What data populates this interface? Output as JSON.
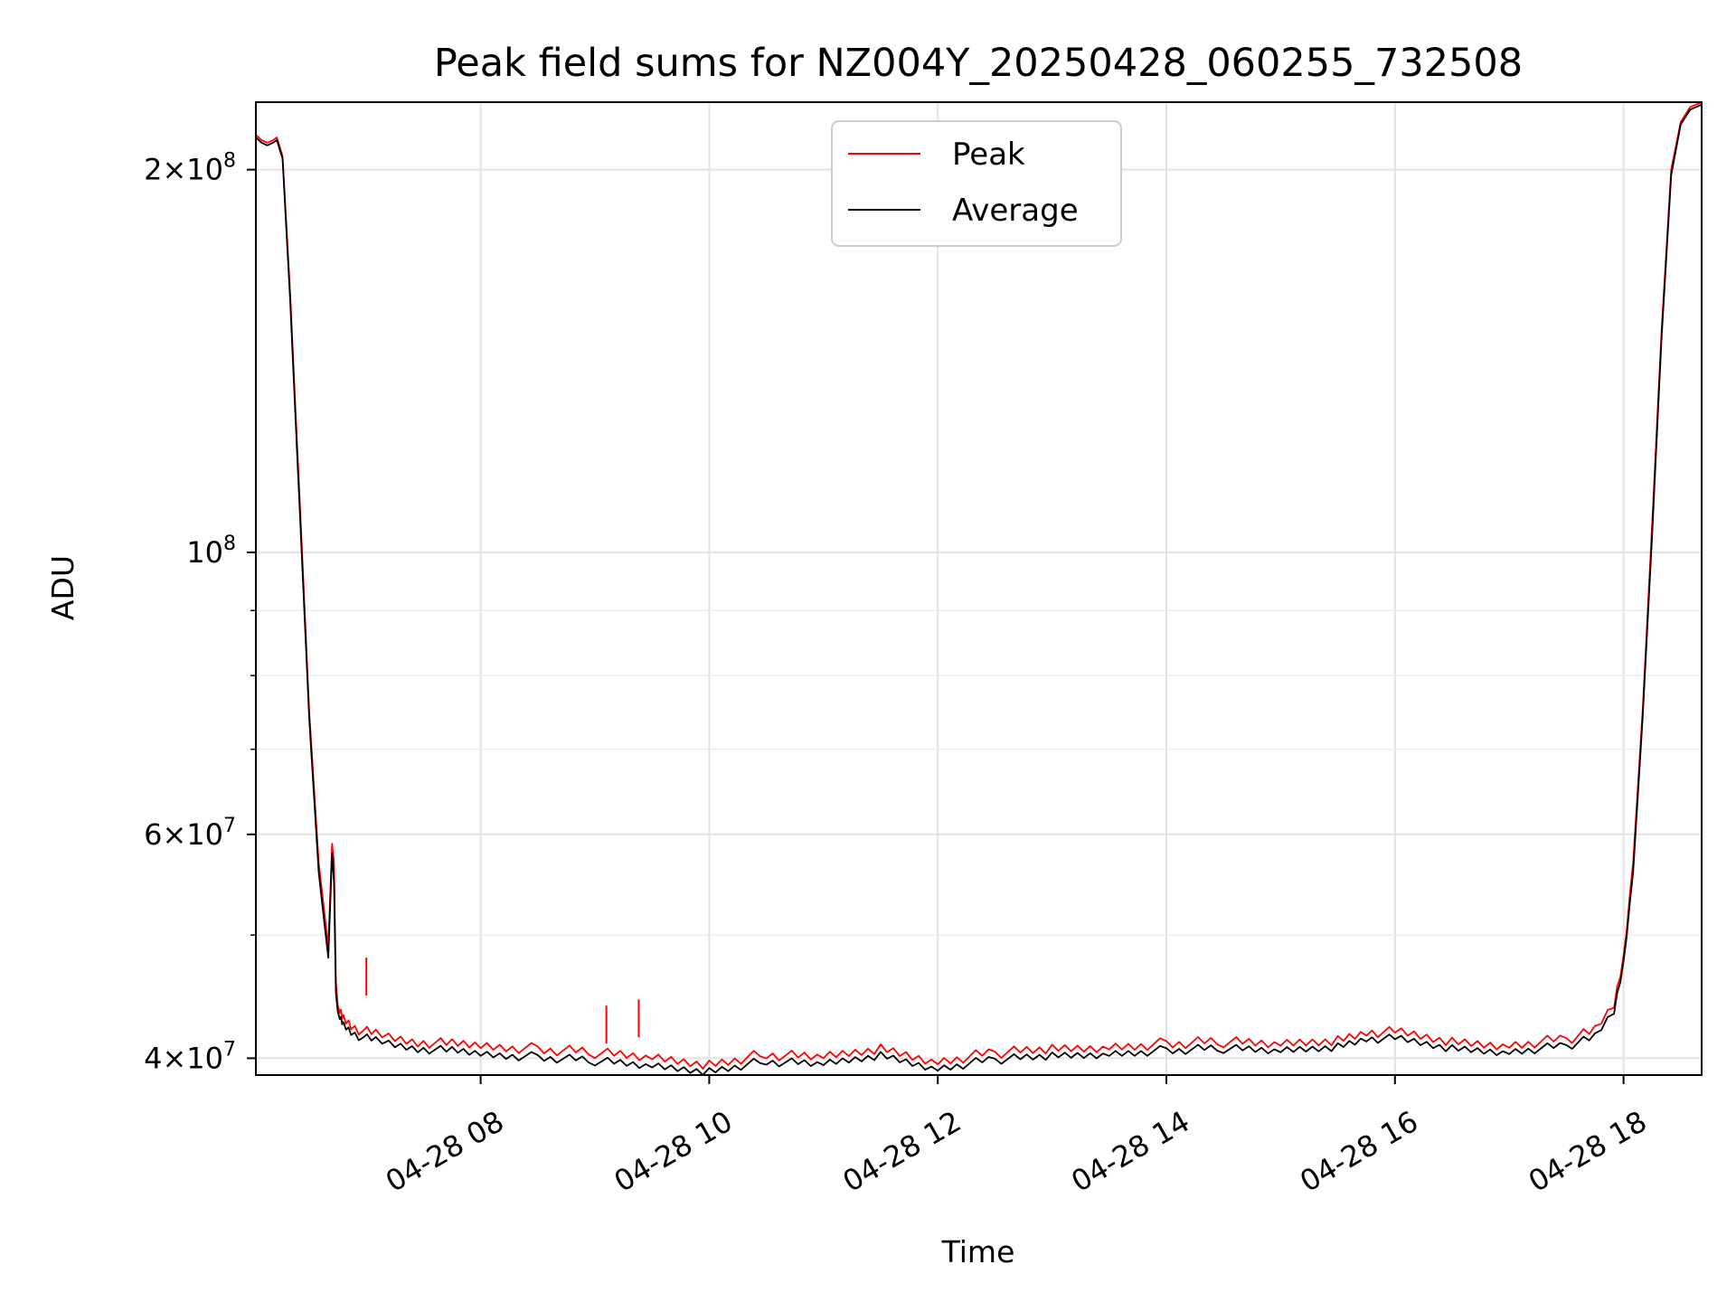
{
  "chart_data": {
    "type": "line",
    "title": "Peak field sums for NZ004Y_20250428_060255_732508",
    "xlabel": "Time",
    "ylabel": "ADU",
    "yscale": "log",
    "xlim": [
      "2025-04-28 06:02",
      "2025-04-28 18:41"
    ],
    "ylim": [
      38800000,
      226000000
    ],
    "grid": true,
    "legend": {
      "placement": "upper center",
      "entries": [
        "Peak",
        "Average"
      ]
    },
    "x_ticks": [
      "04-28 08",
      "04-28 10",
      "04-28 12",
      "04-28 14",
      "04-28 16",
      "04-28 18"
    ],
    "y_ticks": [
      {
        "mantissa": "4",
        "exponent": "7"
      },
      {
        "mantissa": "6",
        "exponent": "7"
      },
      {
        "mantissa": "",
        "exponent": "8"
      },
      {
        "mantissa": "2",
        "exponent": "8"
      }
    ],
    "series": [
      {
        "name": "Peak",
        "color": "#ff0000",
        "x": [
          "2025-04-28 06:02",
          "2025-04-28 06:05",
          "2025-04-28 06:08",
          "2025-04-28 06:11",
          "2025-04-28 06:13",
          "2025-04-28 06:16",
          "2025-04-28 06:20",
          "2025-04-28 06:25",
          "2025-04-28 06:30",
          "2025-04-28 06:35",
          "2025-04-28 06:40",
          "2025-04-28 06:42",
          "2025-04-28 06:43",
          "2025-04-28 06:44",
          "2025-04-28 06:45",
          "2025-04-28 06:46",
          "2025-04-28 06:48",
          "2025-04-28 06:52",
          "2025-04-28 06:58",
          "2025-04-28 07:05",
          "2025-04-28 07:15",
          "2025-04-28 07:30",
          "2025-04-28 07:45",
          "2025-04-28 08:00",
          "2025-04-28 08:30",
          "2025-04-28 09:00",
          "2025-04-28 09:30",
          "2025-04-28 10:00",
          "2025-04-28 10:30",
          "2025-04-28 11:00",
          "2025-04-28 11:30",
          "2025-04-28 12:00",
          "2025-04-28 12:30",
          "2025-04-28 13:00",
          "2025-04-28 13:30",
          "2025-04-28 14:00",
          "2025-04-28 14:30",
          "2025-04-28 15:00",
          "2025-04-28 15:30",
          "2025-04-28 15:45",
          "2025-04-28 16:00",
          "2025-04-28 16:30",
          "2025-04-28 17:00",
          "2025-04-28 17:30",
          "2025-04-28 17:45",
          "2025-04-28 17:55",
          "2025-04-28 18:00",
          "2025-04-28 18:05",
          "2025-04-28 18:10",
          "2025-04-28 18:15",
          "2025-04-28 18:20",
          "2025-04-28 18:25",
          "2025-04-28 18:30",
          "2025-04-28 18:35",
          "2025-04-28 18:41"
        ],
        "y": [
          213000000,
          211000000,
          210000000,
          211000000,
          212000000,
          205000000,
          160000000,
          110000000,
          75000000,
          57000000,
          49000000,
          59000000,
          57000000,
          46000000,
          44000000,
          43500000,
          43000000,
          42500000,
          42000000,
          41800000,
          41500000,
          41200000,
          41000000,
          40900000,
          40700000,
          40400000,
          40000000,
          39600000,
          40300000,
          40000000,
          40700000,
          39800000,
          40400000,
          40600000,
          40800000,
          41100000,
          41200000,
          41000000,
          41400000,
          42000000,
          41900000,
          41200000,
          41000000,
          41400000,
          42000000,
          44000000,
          48000000,
          57000000,
          75000000,
          105000000,
          150000000,
          200000000,
          218000000,
          224000000,
          226000000
        ]
      },
      {
        "name": "Average",
        "color": "#000000",
        "x": [
          "2025-04-28 06:02",
          "2025-04-28 06:05",
          "2025-04-28 06:08",
          "2025-04-28 06:11",
          "2025-04-28 06:13",
          "2025-04-28 06:16",
          "2025-04-28 06:20",
          "2025-04-28 06:25",
          "2025-04-28 06:30",
          "2025-04-28 06:35",
          "2025-04-28 06:40",
          "2025-04-28 06:42",
          "2025-04-28 06:43",
          "2025-04-28 06:44",
          "2025-04-28 06:45",
          "2025-04-28 06:46",
          "2025-04-28 06:48",
          "2025-04-28 06:52",
          "2025-04-28 06:58",
          "2025-04-28 07:05",
          "2025-04-28 07:15",
          "2025-04-28 07:30",
          "2025-04-28 07:45",
          "2025-04-28 08:00",
          "2025-04-28 08:30",
          "2025-04-28 09:00",
          "2025-04-28 09:30",
          "2025-04-28 10:00",
          "2025-04-28 10:30",
          "2025-04-28 11:00",
          "2025-04-28 11:30",
          "2025-04-28 12:00",
          "2025-04-28 12:30",
          "2025-04-28 13:00",
          "2025-04-28 13:30",
          "2025-04-28 14:00",
          "2025-04-28 14:30",
          "2025-04-28 15:00",
          "2025-04-28 15:30",
          "2025-04-28 15:45",
          "2025-04-28 16:00",
          "2025-04-28 16:30",
          "2025-04-28 17:00",
          "2025-04-28 17:30",
          "2025-04-28 17:45",
          "2025-04-28 17:55",
          "2025-04-28 18:00",
          "2025-04-28 18:05",
          "2025-04-28 18:10",
          "2025-04-28 18:15",
          "2025-04-28 18:20",
          "2025-04-28 18:25",
          "2025-04-28 18:30",
          "2025-04-28 18:35",
          "2025-04-28 18:41"
        ],
        "y": [
          212000000,
          210000000,
          209000000,
          210000000,
          211000000,
          204000000,
          158000000,
          108000000,
          74000000,
          56000000,
          48000000,
          58000000,
          55000000,
          45000000,
          43500000,
          43000000,
          42500000,
          42000000,
          41500000,
          41300000,
          41000000,
          40700000,
          40500000,
          40300000,
          40100000,
          39800000,
          39400000,
          39100000,
          39800000,
          39500000,
          40200000,
          39300000,
          39900000,
          40100000,
          40300000,
          40600000,
          40700000,
          40500000,
          40900000,
          41500000,
          41400000,
          40700000,
          40500000,
          40900000,
          41500000,
          43500000,
          47500000,
          56000000,
          74000000,
          103000000,
          148000000,
          198000000,
          217000000,
          223000000,
          225000000
        ]
      }
    ],
    "annotations": [
      {
        "series": "Peak",
        "x": "2025-04-28 07:00",
        "y": 48000000,
        "note": "spike"
      },
      {
        "series": "Peak",
        "x": "2025-04-28 09:06",
        "y": 44000000,
        "note": "spike"
      },
      {
        "series": "Peak",
        "x": "2025-04-28 09:23",
        "y": 44500000,
        "note": "spike"
      }
    ]
  }
}
